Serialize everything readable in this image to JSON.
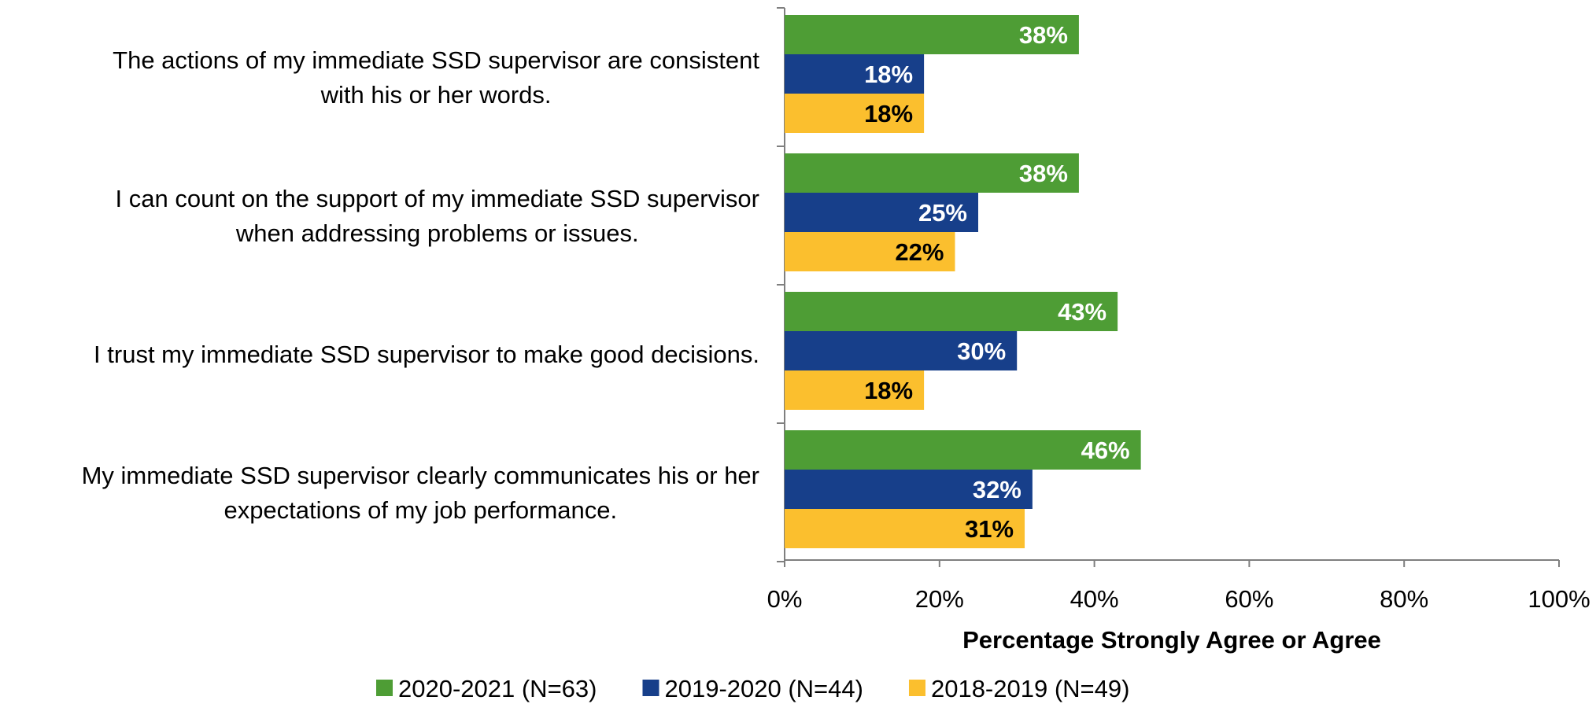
{
  "chart_data": {
    "type": "bar",
    "orientation": "horizontal",
    "categories": [
      [
        "The actions of my immediate SSD supervisor  are consistent",
        "with his or her words."
      ],
      [
        "I can count on the support of my immediate SSD supervisor",
        "when addressing problems or issues."
      ],
      [
        "I trust my immediate SSD supervisor to make good decisions."
      ],
      [
        "My immediate SSD supervisor clearly communicates his or her",
        "expectations of my job performance."
      ]
    ],
    "series": [
      {
        "name": "2020-2021 (N=63)",
        "color": "#4E9D35",
        "label_color": "#ffffff",
        "values": [
          38,
          38,
          43,
          46
        ]
      },
      {
        "name": "2019-2020 (N=44)",
        "color": "#173F8A",
        "label_color": "#ffffff",
        "values": [
          18,
          25,
          30,
          32
        ]
      },
      {
        "name": "2018-2019 (N=49)",
        "color": "#FBBF2E",
        "label_color": "#000000",
        "values": [
          18,
          22,
          18,
          31
        ]
      }
    ],
    "value_suffix": "%",
    "xlabel": "Percentage Strongly Agree or Agree",
    "xlim": [
      0,
      100
    ],
    "xticks": [
      "0%",
      "20%",
      "40%",
      "60%",
      "80%",
      "100%"
    ],
    "grid": false,
    "legend_position": "bottom"
  }
}
